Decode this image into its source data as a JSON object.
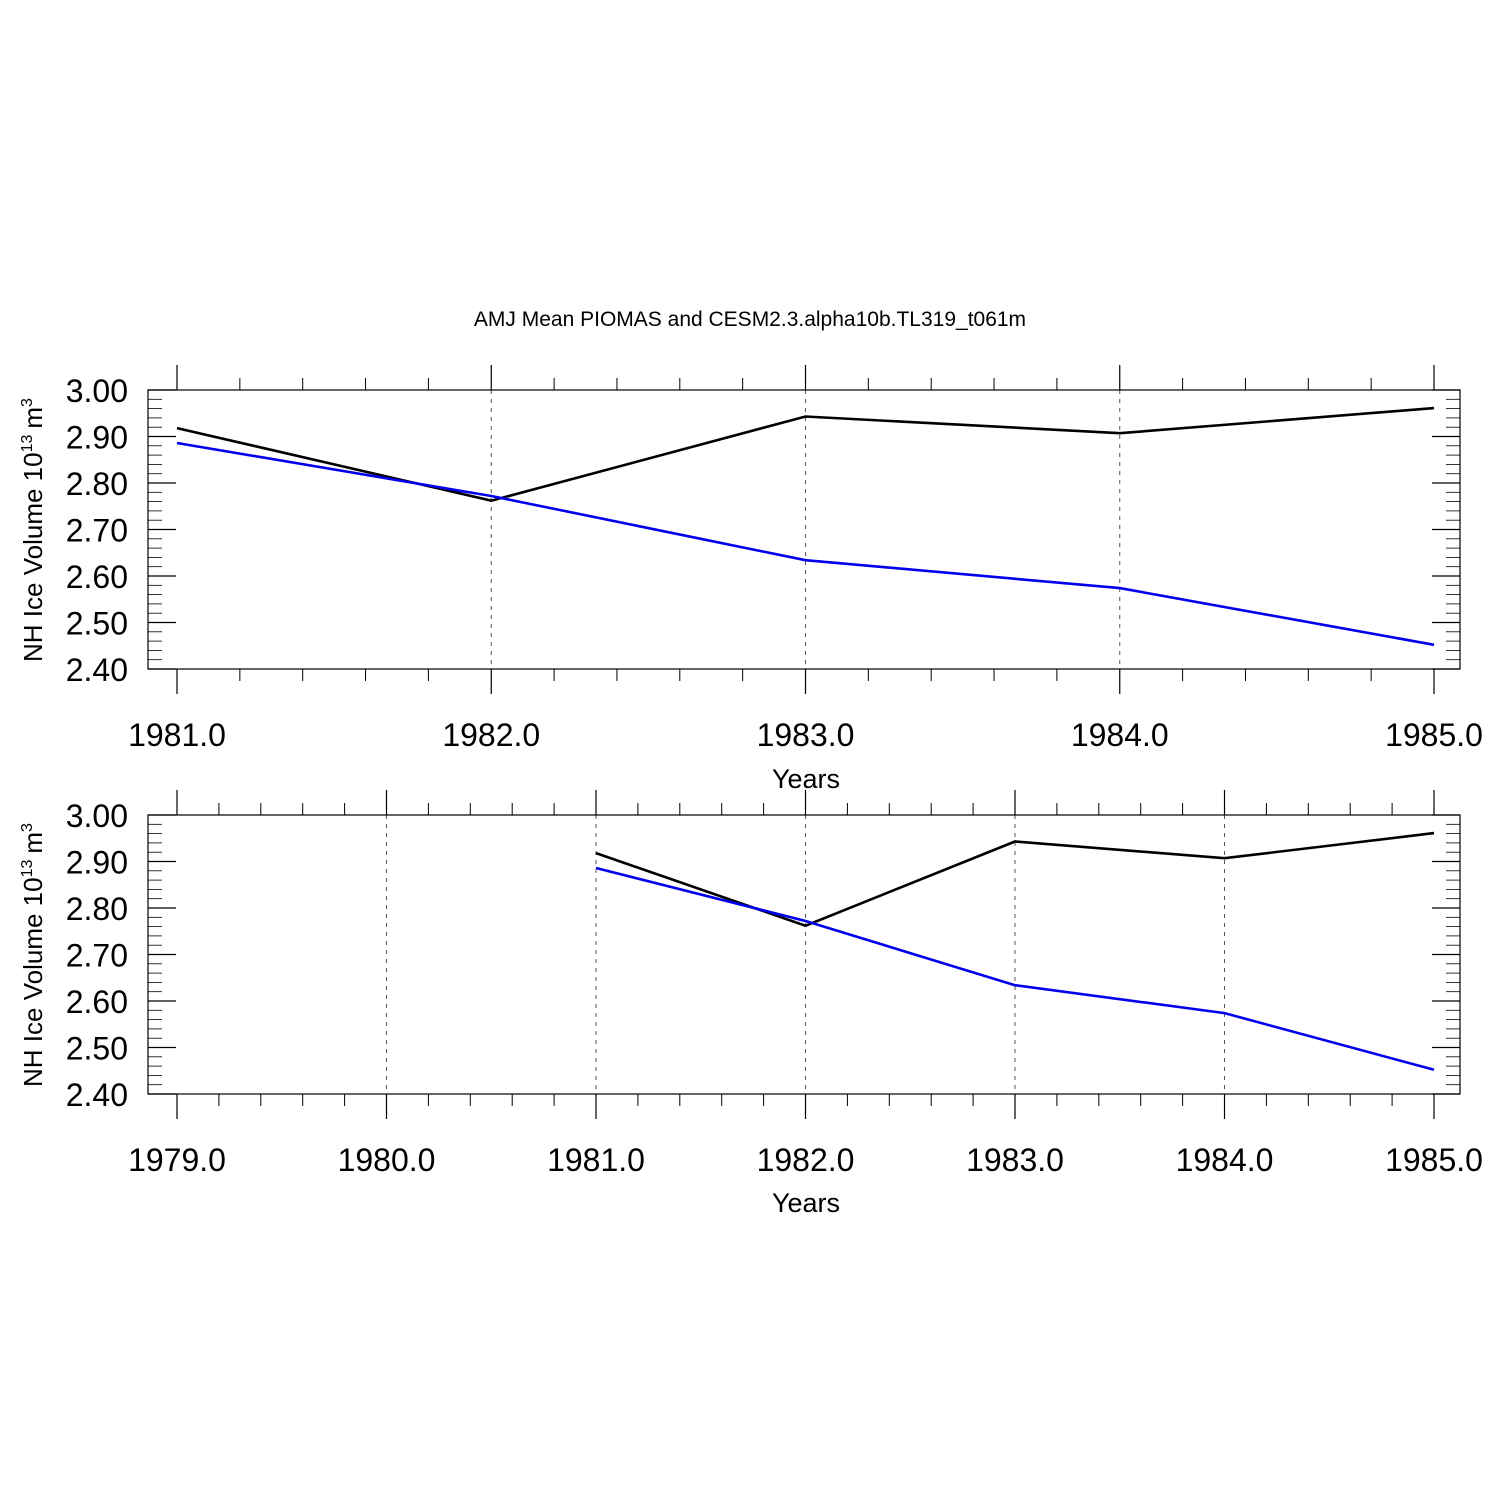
{
  "title": "AMJ Mean PIOMAS and CESM2.3.alpha10b.TL319_t061m",
  "chart_data": [
    {
      "type": "line",
      "xlabel": "Years",
      "ylabel": "NH Ice Volume 10",
      "ylabel_exponent": "13",
      "ylabel_unit": "m",
      "ylabel_unit_exponent": "3",
      "xlim": [
        1981,
        1985
      ],
      "ylim": [
        2.4,
        3.0
      ],
      "x_ticks": [
        "1981.0",
        "1982.0",
        "1983.0",
        "1984.0",
        "1985.0"
      ],
      "y_ticks": [
        "3.00",
        "2.90",
        "2.80",
        "2.70",
        "2.60",
        "2.50",
        "2.40"
      ],
      "grid": "vertical dashed at major x ticks",
      "series": [
        {
          "color": "#000000",
          "x": [
            1981,
            1982,
            1983,
            1984,
            1985
          ],
          "values": [
            2.918,
            2.762,
            2.943,
            2.907,
            2.961
          ]
        },
        {
          "color": "#0000ee",
          "x": [
            1981,
            1982,
            1983,
            1984,
            1985
          ],
          "values": [
            2.886,
            2.772,
            2.634,
            2.574,
            2.452
          ]
        }
      ]
    },
    {
      "type": "line",
      "xlabel": "Years",
      "ylabel": "NH Ice Volume 10",
      "ylabel_exponent": "13",
      "ylabel_unit": "m",
      "ylabel_unit_exponent": "3",
      "xlim": [
        1979,
        1985
      ],
      "ylim": [
        2.4,
        3.0
      ],
      "x_ticks": [
        "1979.0",
        "1980.0",
        "1981.0",
        "1982.0",
        "1983.0",
        "1984.0",
        "1985.0"
      ],
      "y_ticks": [
        "3.00",
        "2.90",
        "2.80",
        "2.70",
        "2.60",
        "2.50",
        "2.40"
      ],
      "grid": "vertical dashed at major x ticks",
      "series": [
        {
          "color": "#000000",
          "x": [
            1981,
            1982,
            1983,
            1984,
            1985
          ],
          "values": [
            2.918,
            2.762,
            2.943,
            2.907,
            2.961
          ]
        },
        {
          "color": "#0000ee",
          "x": [
            1981,
            1982,
            1983,
            1984,
            1985
          ],
          "values": [
            2.886,
            2.772,
            2.634,
            2.574,
            2.452
          ]
        }
      ]
    }
  ]
}
